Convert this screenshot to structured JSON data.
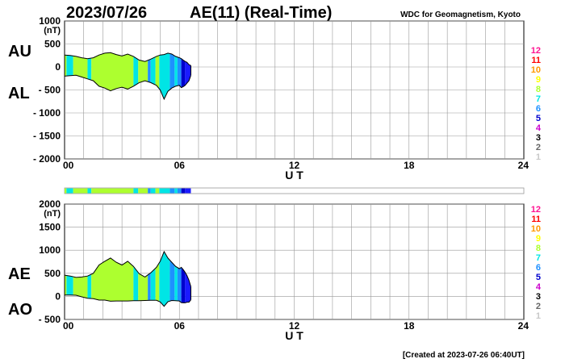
{
  "header": {
    "date": "2023/07/26",
    "title": "AE(11) (Real-Time)",
    "credit": "WDC for Geomagnetism, Kyoto"
  },
  "footer": {
    "created": "[Created at 2023-07-26 06:40UT]"
  },
  "stations_legend": {
    "labels": [
      "12",
      "11",
      "10",
      "9",
      "8",
      "7",
      "6",
      "5",
      "4",
      "3",
      "2",
      "1"
    ],
    "colors": [
      "#ff1493",
      "#ff0000",
      "#ff9900",
      "#ffff00",
      "#adff2f",
      "#00e5e5",
      "#1e90ff",
      "#0000cd",
      "#cc00cc",
      "#000000",
      "#666666",
      "#c8c8c8"
    ]
  },
  "chart_data": [
    {
      "type": "area",
      "panel": "AU/AL",
      "series_labels": [
        "AU",
        "AL"
      ],
      "unit_label": "(nT)",
      "xlabel": "U T",
      "x_ticks": [
        "00",
        "06",
        "12",
        "18",
        "24"
      ],
      "xlim": [
        0,
        24
      ],
      "ylim": [
        -2000,
        1000
      ],
      "y_ticks": [
        "1000",
        "500",
        "0",
        "- 500",
        "- 1000",
        "- 1500",
        "- 2000"
      ],
      "y_tick_values": [
        1000,
        500,
        0,
        -500,
        -1000,
        -1500,
        -2000
      ],
      "grid": true,
      "x_hours": [
        0.0,
        0.3,
        0.6,
        0.9,
        1.2,
        1.5,
        1.8,
        2.1,
        2.4,
        2.7,
        3.0,
        3.3,
        3.6,
        3.9,
        4.2,
        4.5,
        4.8,
        5.0,
        5.2,
        5.4,
        5.6,
        5.8,
        6.0,
        6.1,
        6.2,
        6.3,
        6.4,
        6.5,
        6.6
      ],
      "AU": [
        260,
        250,
        230,
        200,
        180,
        200,
        260,
        300,
        310,
        270,
        240,
        280,
        230,
        150,
        120,
        170,
        230,
        260,
        270,
        300,
        280,
        230,
        200,
        180,
        150,
        120,
        100,
        50,
        30
      ],
      "AL": [
        -200,
        -190,
        -180,
        -220,
        -260,
        -300,
        -420,
        -460,
        -520,
        -470,
        -440,
        -480,
        -420,
        -340,
        -300,
        -340,
        -400,
        -500,
        -700,
        -530,
        -460,
        -420,
        -400,
        -450,
        -430,
        -400,
        -350,
        -300,
        -180
      ]
    },
    {
      "type": "area",
      "panel": "AE/AO",
      "series_labels": [
        "AE",
        "AO"
      ],
      "unit_label": "(nT)",
      "xlabel": "U T",
      "x_ticks": [
        "00",
        "06",
        "12",
        "18",
        "24"
      ],
      "xlim": [
        0,
        24
      ],
      "ylim": [
        -500,
        2000
      ],
      "y_ticks": [
        "2000",
        "1500",
        "1000",
        "500",
        "0",
        "- 500"
      ],
      "y_tick_values": [
        2000,
        1500,
        1000,
        500,
        0,
        -500
      ],
      "grid": true,
      "x_hours": [
        0.0,
        0.3,
        0.6,
        0.9,
        1.2,
        1.5,
        1.8,
        2.1,
        2.4,
        2.7,
        3.0,
        3.3,
        3.6,
        3.9,
        4.2,
        4.5,
        4.8,
        5.0,
        5.2,
        5.4,
        5.6,
        5.8,
        6.0,
        6.1,
        6.2,
        6.3,
        6.4,
        6.5,
        6.6
      ],
      "AE": [
        460,
        440,
        410,
        420,
        440,
        500,
        680,
        760,
        830,
        740,
        680,
        760,
        650,
        490,
        420,
        510,
        630,
        760,
        970,
        830,
        740,
        650,
        600,
        630,
        580,
        520,
        450,
        350,
        210
      ],
      "AO": [
        30,
        30,
        25,
        -10,
        -40,
        -50,
        -80,
        -80,
        -105,
        -100,
        -100,
        -100,
        -95,
        -95,
        -90,
        -85,
        -85,
        -120,
        -215,
        -115,
        -90,
        -95,
        -100,
        -135,
        -140,
        -140,
        -125,
        -125,
        -75
      ]
    }
  ],
  "activity_bar": {
    "segments": [
      {
        "from": 0.0,
        "to": 0.1,
        "color": "#adff2f"
      },
      {
        "from": 0.1,
        "to": 0.45,
        "color": "#00e5e5"
      },
      {
        "from": 0.45,
        "to": 1.2,
        "color": "#adff2f"
      },
      {
        "from": 1.2,
        "to": 1.4,
        "color": "#00e5e5"
      },
      {
        "from": 1.4,
        "to": 3.6,
        "color": "#adff2f"
      },
      {
        "from": 3.6,
        "to": 3.85,
        "color": "#00e5e5"
      },
      {
        "from": 3.85,
        "to": 4.35,
        "color": "#adff2f"
      },
      {
        "from": 4.35,
        "to": 4.5,
        "color": "#1e90ff"
      },
      {
        "from": 4.5,
        "to": 4.75,
        "color": "#00e5e5"
      },
      {
        "from": 4.75,
        "to": 4.95,
        "color": "#adff2f"
      },
      {
        "from": 4.95,
        "to": 5.5,
        "color": "#00e5e5"
      },
      {
        "from": 5.5,
        "to": 5.75,
        "color": "#1e90ff"
      },
      {
        "from": 5.75,
        "to": 5.9,
        "color": "#00e5e5"
      },
      {
        "from": 5.9,
        "to": 6.1,
        "color": "#1e90ff"
      },
      {
        "from": 6.1,
        "to": 6.3,
        "color": "#0000cd"
      },
      {
        "from": 6.3,
        "to": 6.6,
        "color": "#1a1aff"
      }
    ]
  }
}
